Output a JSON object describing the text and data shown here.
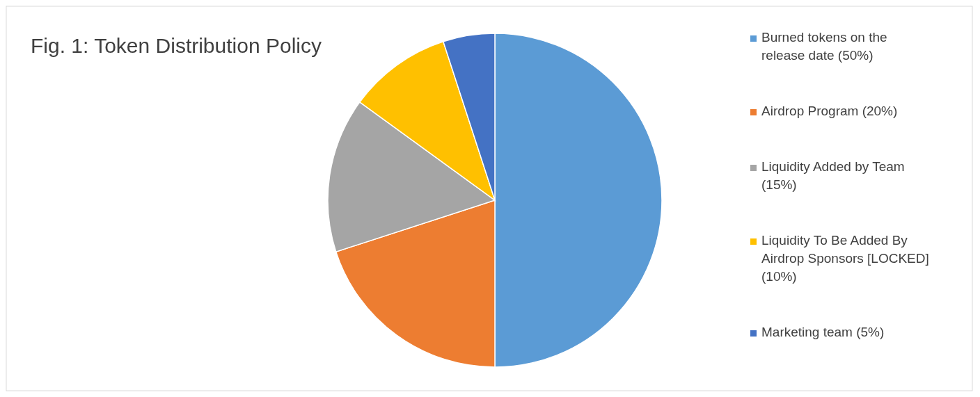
{
  "chart_data": {
    "type": "pie",
    "title": "Fig. 1: Token Distribution Policy",
    "categories": [
      "Burned tokens on the release date (50%)",
      "Airdrop Program (20%)",
      "Liquidity Added by Team (15%)",
      "Liquidity To Be Added By Airdrop Sponsors [LOCKED] (10%)",
      "Marketing team (5%)"
    ],
    "values": [
      50,
      20,
      15,
      10,
      5
    ],
    "colors": [
      "#5b9bd5",
      "#ed7d31",
      "#a5a5a5",
      "#ffc000",
      "#4472c4"
    ],
    "legend": "right"
  }
}
